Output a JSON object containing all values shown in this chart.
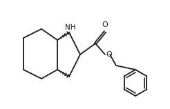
{
  "bg_color": "#ffffff",
  "line_color": "#1a1a1a",
  "line_width": 1.3,
  "NH_label": "NH",
  "O_label": "O",
  "O2_label": "O",
  "figsize": [
    2.46,
    1.58
  ],
  "dpi": 100
}
